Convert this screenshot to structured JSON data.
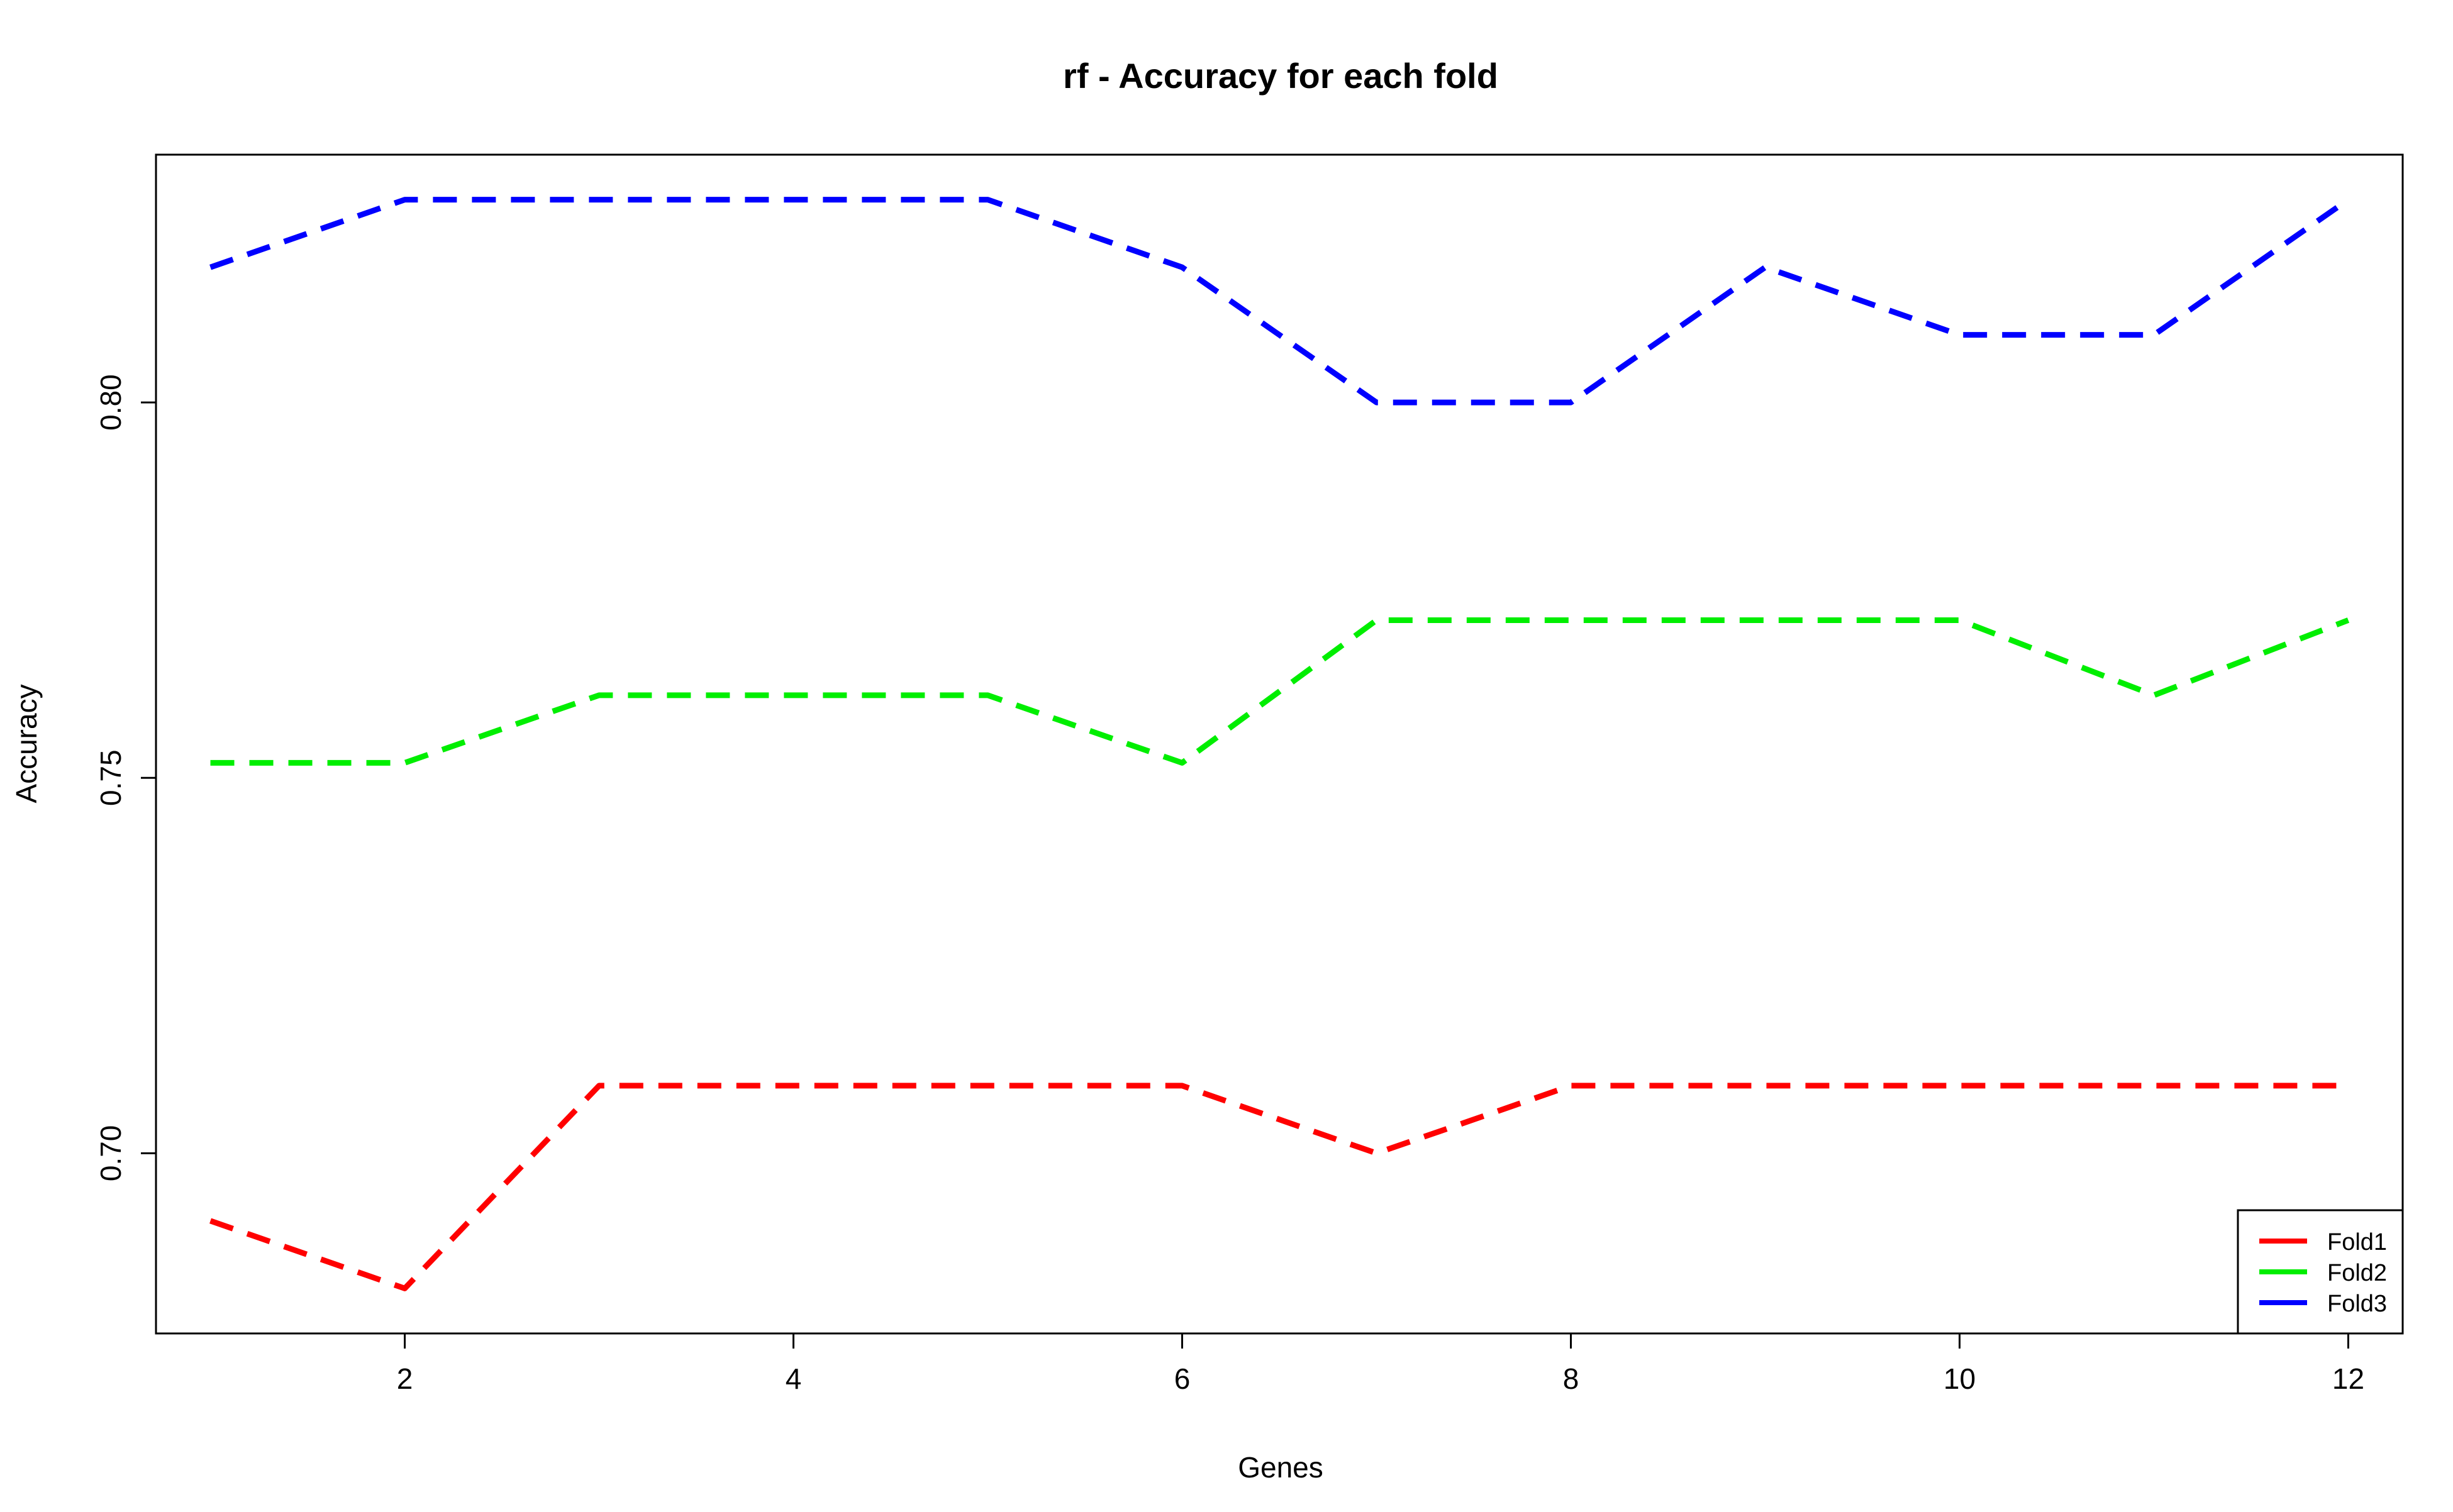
{
  "chart_data": {
    "type": "line",
    "title": "rf - Accuracy for each fold",
    "xlabel": "Genes",
    "ylabel": "Accuracy",
    "xlim": [
      0.72,
      12.28
    ],
    "ylim": [
      0.676,
      0.833
    ],
    "x_ticks": [
      2,
      4,
      6,
      8,
      10,
      12
    ],
    "x_tick_labels": [
      "2",
      "4",
      "6",
      "8",
      "10",
      "12"
    ],
    "y_ticks": [
      0.7,
      0.75,
      0.8
    ],
    "y_tick_labels": [
      "0.70",
      "0.75",
      "0.80"
    ],
    "x": [
      1,
      2,
      3,
      4,
      5,
      6,
      7,
      8,
      9,
      10,
      11,
      12
    ],
    "grid": false,
    "legend_position": "bottom-right",
    "series": [
      {
        "name": "Fold1",
        "color": "#ff0000",
        "line_style": "dashed",
        "values": [
          0.691,
          0.682,
          0.709,
          0.709,
          0.709,
          0.709,
          0.7,
          0.709,
          0.709,
          0.709,
          0.709,
          0.709
        ]
      },
      {
        "name": "Fold2",
        "color": "#00ee00",
        "line_style": "dashed",
        "values": [
          0.752,
          0.752,
          0.761,
          0.761,
          0.761,
          0.752,
          0.771,
          0.771,
          0.771,
          0.771,
          0.761,
          0.771
        ]
      },
      {
        "name": "Fold3",
        "color": "#0000ff",
        "line_style": "dashed",
        "values": [
          0.818,
          0.827,
          0.827,
          0.827,
          0.827,
          0.818,
          0.8,
          0.8,
          0.818,
          0.809,
          0.809,
          0.827
        ]
      }
    ]
  }
}
